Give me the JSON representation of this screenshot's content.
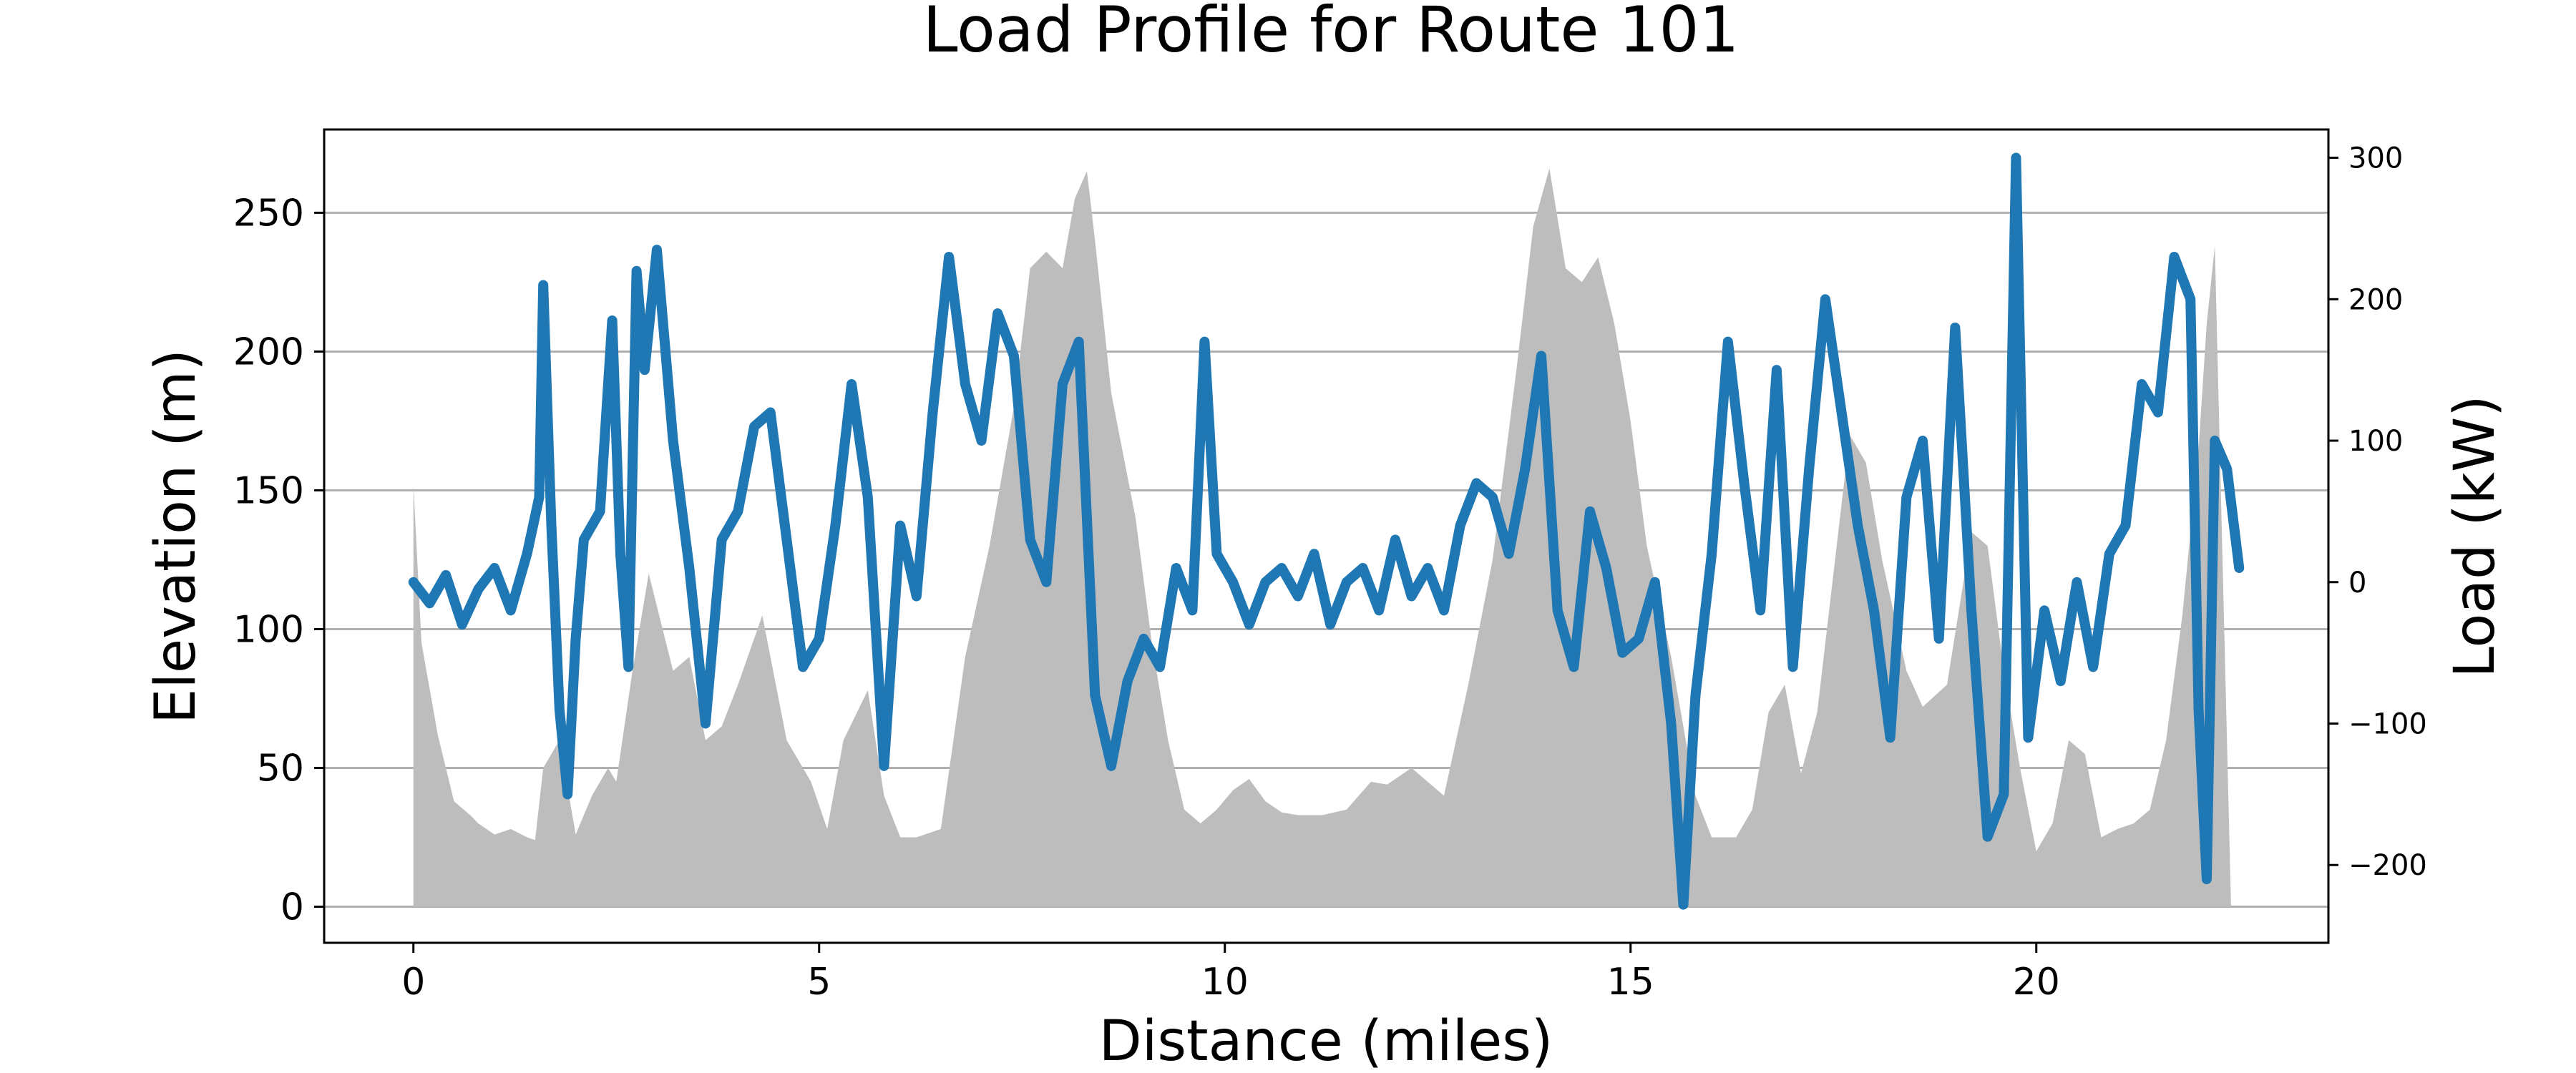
{
  "chart_data": {
    "type": "line",
    "title": "Load Profile for Route 101",
    "xlabel": "Distance (miles)",
    "ylabel_left": "Elevation (m)",
    "ylabel_right": "Load (kW)",
    "xlim": [
      -1.1,
      23.6
    ],
    "ylim_left": [
      -13,
      280
    ],
    "ylim_right": [
      -255,
      320
    ],
    "x_ticks": [
      0,
      5,
      10,
      15,
      20
    ],
    "y_left_ticks": [
      0,
      50,
      100,
      150,
      200,
      250
    ],
    "y_right_ticks": [
      -200,
      -100,
      0,
      100,
      200,
      300
    ],
    "y_right_tick_labels": [
      "−200",
      "−100",
      "0",
      "100",
      "200",
      "300"
    ],
    "grid": "horizontal (left axis)",
    "colors": {
      "elevation": "#bdbdbd",
      "load": "#1f77b4"
    },
    "series": [
      {
        "axis": "left",
        "kind": "area",
        "x": [
          0.0,
          0.1,
          0.3,
          0.5,
          0.7,
          0.8,
          1.0,
          1.2,
          1.4,
          1.5,
          1.6,
          1.8,
          2.0,
          2.2,
          2.4,
          2.5,
          2.7,
          2.9,
          3.2,
          3.4,
          3.6,
          3.8,
          4.0,
          4.3,
          4.6,
          4.9,
          5.1,
          5.3,
          5.6,
          5.8,
          6.0,
          6.2,
          6.5,
          6.8,
          7.1,
          7.4,
          7.6,
          7.8,
          8.0,
          8.15,
          8.3,
          8.4,
          8.6,
          8.9,
          9.1,
          9.3,
          9.5,
          9.7,
          9.9,
          10.1,
          10.3,
          10.5,
          10.7,
          10.9,
          11.2,
          11.5,
          11.8,
          12.0,
          12.3,
          12.5,
          12.7,
          13.0,
          13.3,
          13.6,
          13.8,
          14.0,
          14.2,
          14.4,
          14.6,
          14.8,
          15.0,
          15.2,
          15.5,
          15.8,
          16.0,
          16.3,
          16.5,
          16.7,
          16.9,
          17.1,
          17.3,
          17.5,
          17.7,
          17.9,
          18.1,
          18.4,
          18.6,
          18.9,
          19.2,
          19.4,
          19.6,
          19.8,
          20.0,
          20.2,
          20.4,
          20.6,
          20.8,
          21.0,
          21.2,
          21.4,
          21.6,
          21.8,
          22.0,
          22.1,
          22.2,
          22.4,
          22.45
        ],
        "y": [
          152,
          95,
          62,
          38,
          33,
          30,
          26,
          28,
          25,
          24,
          50,
          60,
          26,
          40,
          50,
          45,
          85,
          120,
          85,
          90,
          60,
          65,
          80,
          105,
          60,
          45,
          28,
          60,
          78,
          40,
          25,
          25,
          28,
          90,
          130,
          180,
          230,
          236,
          230,
          255,
          265,
          240,
          185,
          140,
          95,
          60,
          35,
          30,
          35,
          42,
          46,
          38,
          34,
          33,
          33,
          35,
          45,
          44,
          50,
          45,
          40,
          80,
          125,
          195,
          245,
          266,
          230,
          225,
          234,
          210,
          175,
          130,
          90,
          40,
          25,
          25,
          35,
          70,
          80,
          48,
          70,
          120,
          170,
          160,
          125,
          85,
          72,
          80,
          135,
          130,
          85,
          50,
          20,
          30,
          60,
          55,
          25,
          28,
          30,
          35,
          60,
          105,
          165,
          210,
          238,
          0,
          0
        ]
      },
      {
        "axis": "right",
        "kind": "line",
        "x": [
          0.0,
          0.2,
          0.4,
          0.6,
          0.8,
          1.0,
          1.2,
          1.4,
          1.55,
          1.6,
          1.7,
          1.8,
          1.9,
          2.0,
          2.1,
          2.3,
          2.45,
          2.55,
          2.65,
          2.75,
          2.85,
          3.0,
          3.2,
          3.4,
          3.6,
          3.8,
          4.0,
          4.2,
          4.4,
          4.6,
          4.8,
          5.0,
          5.2,
          5.4,
          5.6,
          5.8,
          6.0,
          6.2,
          6.4,
          6.6,
          6.8,
          7.0,
          7.2,
          7.4,
          7.6,
          7.8,
          8.0,
          8.2,
          8.4,
          8.6,
          8.8,
          9.0,
          9.2,
          9.4,
          9.6,
          9.75,
          9.9,
          10.1,
          10.3,
          10.5,
          10.7,
          10.9,
          11.1,
          11.3,
          11.5,
          11.7,
          11.9,
          12.1,
          12.3,
          12.5,
          12.7,
          12.9,
          13.1,
          13.3,
          13.5,
          13.7,
          13.9,
          14.1,
          14.3,
          14.5,
          14.7,
          14.9,
          15.1,
          15.3,
          15.5,
          15.65,
          15.8,
          16.0,
          16.2,
          16.4,
          16.6,
          16.8,
          17.0,
          17.2,
          17.4,
          17.6,
          17.8,
          18.0,
          18.2,
          18.4,
          18.6,
          18.8,
          19.0,
          19.2,
          19.4,
          19.6,
          19.75,
          19.9,
          20.1,
          20.3,
          20.5,
          20.7,
          20.9,
          21.1,
          21.3,
          21.5,
          21.7,
          21.9,
          22.0,
          22.1,
          22.2,
          22.35,
          22.5
        ],
        "y": [
          0,
          -15,
          5,
          -30,
          -5,
          10,
          -20,
          20,
          60,
          210,
          40,
          -90,
          -150,
          -40,
          30,
          50,
          185,
          20,
          -60,
          220,
          150,
          235,
          100,
          10,
          -100,
          30,
          50,
          110,
          120,
          30,
          -60,
          -40,
          40,
          140,
          60,
          -130,
          40,
          -10,
          120,
          230,
          140,
          100,
          190,
          160,
          30,
          0,
          140,
          170,
          -80,
          -130,
          -70,
          -40,
          -60,
          10,
          -20,
          170,
          20,
          0,
          -30,
          0,
          10,
          -10,
          20,
          -30,
          0,
          10,
          -20,
          30,
          -10,
          10,
          -20,
          40,
          70,
          60,
          20,
          80,
          160,
          -20,
          -60,
          50,
          10,
          -50,
          -40,
          0,
          -100,
          -228,
          -80,
          20,
          170,
          70,
          -20,
          150,
          -60,
          80,
          200,
          120,
          40,
          -20,
          -110,
          60,
          100,
          -40,
          180,
          -20,
          -180,
          -150,
          300,
          -110,
          -20,
          -70,
          0,
          -60,
          20,
          40,
          140,
          120,
          230,
          200,
          -90,
          -210,
          100,
          80,
          10
        ]
      }
    ]
  }
}
